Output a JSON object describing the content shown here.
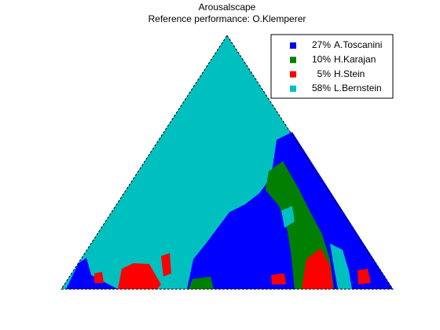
{
  "chart_data": {
    "type": "region-map",
    "title": "Arousalscape",
    "subtitle": "Reference performance: O.Klemperer",
    "series": [
      {
        "name": "A.Toscanini",
        "color": "#0000ff",
        "share": 27,
        "share_label": "27%"
      },
      {
        "name": "H.Karajan",
        "color": "#007f00",
        "share": 10,
        "share_label": "10%"
      },
      {
        "name": "H.Stein",
        "color": "#ff0000",
        "share": 5,
        "share_label": "5%"
      },
      {
        "name": "L.Bernstein",
        "color": "#00bfbf",
        "share": 58,
        "share_label": "58%"
      }
    ]
  }
}
